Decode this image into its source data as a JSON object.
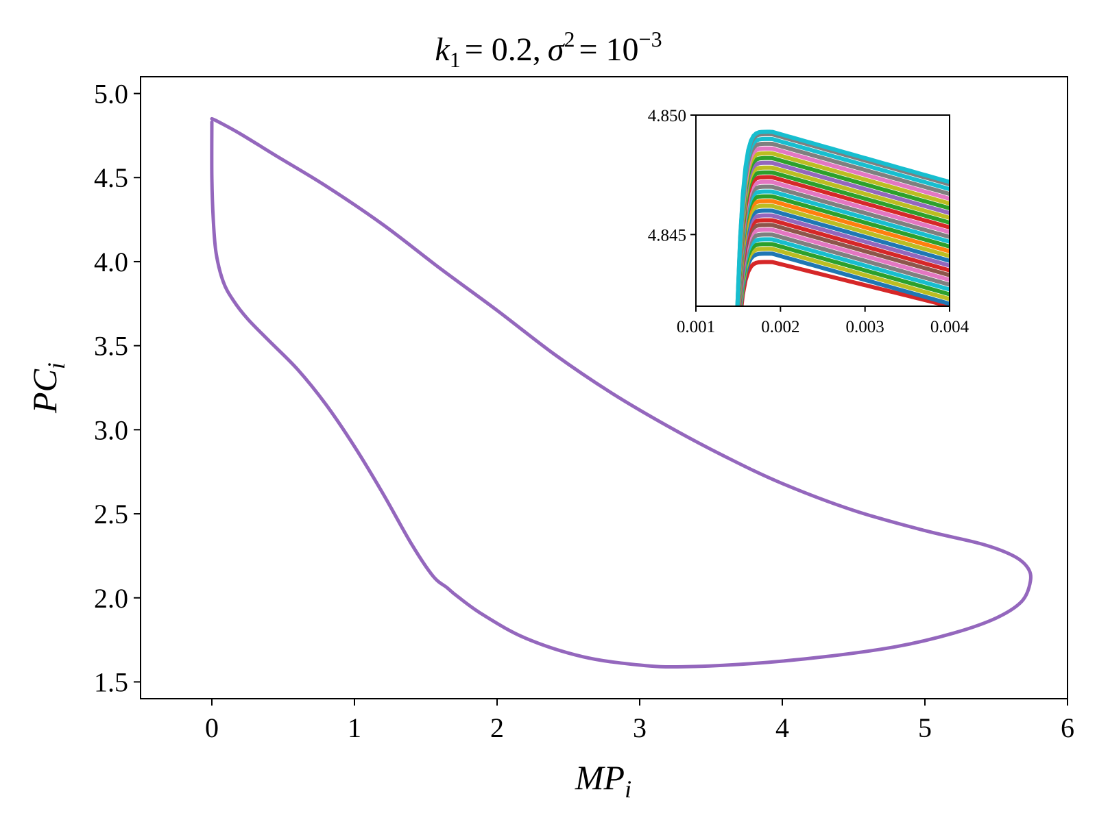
{
  "chart_data": [
    {
      "type": "line",
      "role": "main",
      "title": {
        "k_symbol": "k",
        "k_sub": "1",
        "k_value": "= 0.2,",
        "sigma_symbol": "σ",
        "sigma_sup": "2",
        "eq": "= 10",
        "exp": "−3"
      },
      "xlabel": {
        "base": "MP",
        "sub": "i"
      },
      "ylabel": {
        "base": "PC",
        "sub": "i"
      },
      "xlim": [
        -0.5,
        6
      ],
      "ylim": [
        1.4,
        5.1
      ],
      "xticks": [
        0,
        1,
        2,
        3,
        4,
        5,
        6
      ],
      "xtick_labels": [
        "0",
        "1",
        "2",
        "3",
        "4",
        "5",
        "6"
      ],
      "yticks": [
        1.5,
        2.0,
        2.5,
        3.0,
        3.5,
        4.0,
        4.5,
        5.0
      ],
      "ytick_labels": [
        "1.5",
        "2.0",
        "2.5",
        "3.0",
        "3.5",
        "4.0",
        "4.5",
        "5.0"
      ],
      "grid": false,
      "series": [
        {
          "color": "#9467bd",
          "x": [
            0.0,
            0.0,
            0.01,
            0.03,
            0.08,
            0.15,
            0.25,
            0.4,
            0.6,
            0.8,
            1.0,
            1.2,
            1.4,
            1.55,
            1.65,
            1.72,
            1.9,
            2.2,
            2.6,
            3.0,
            3.3,
            3.8,
            4.3,
            4.8,
            5.2,
            5.5,
            5.68,
            5.74,
            5.72,
            5.62,
            5.4,
            5.0,
            4.5,
            4.0,
            3.6,
            3.2,
            2.8,
            2.4,
            2.0,
            1.6,
            1.2,
            0.8,
            0.45,
            0.2,
            0.05,
            0.0
          ],
          "y": [
            4.83,
            4.5,
            4.25,
            4.05,
            3.88,
            3.77,
            3.66,
            3.53,
            3.36,
            3.15,
            2.9,
            2.62,
            2.32,
            2.13,
            2.06,
            2.01,
            1.9,
            1.76,
            1.65,
            1.6,
            1.59,
            1.61,
            1.65,
            1.71,
            1.79,
            1.88,
            1.98,
            2.1,
            2.18,
            2.25,
            2.32,
            2.4,
            2.52,
            2.68,
            2.84,
            3.02,
            3.22,
            3.45,
            3.71,
            3.96,
            4.22,
            4.45,
            4.63,
            4.76,
            4.83,
            4.85
          ]
        }
      ]
    },
    {
      "type": "line",
      "role": "inset",
      "xlim": [
        0.001,
        0.004
      ],
      "ylim": [
        4.842,
        4.85
      ],
      "xticks": [
        0.001,
        0.002,
        0.003,
        0.004
      ],
      "xtick_labels": [
        "0.001",
        "0.002",
        "0.003",
        "0.004"
      ],
      "yticks": [
        4.845,
        4.85
      ],
      "ytick_labels": [
        "4.845",
        "4.850"
      ],
      "grid": false,
      "curve_shape": {
        "x_rise": 0.00146,
        "x_peak": 0.0019
      },
      "series": [
        {
          "color": "#d62728",
          "peak": 4.84385,
          "end": 4.842
        },
        {
          "color": "#1f77b4",
          "peak": 4.8442,
          "end": 4.8421
        },
        {
          "color": "#bcbd22",
          "peak": 4.8444,
          "end": 4.8423
        },
        {
          "color": "#2ca02c",
          "peak": 4.8446,
          "end": 4.8425
        },
        {
          "color": "#17becf",
          "peak": 4.8448,
          "end": 4.8427
        },
        {
          "color": "#7f7f7f",
          "peak": 4.845,
          "end": 4.8429
        },
        {
          "color": "#e377c2",
          "peak": 4.8452,
          "end": 4.8431
        },
        {
          "color": "#8c564b",
          "peak": 4.8454,
          "end": 4.8433
        },
        {
          "color": "#d62728",
          "peak": 4.8456,
          "end": 4.8435
        },
        {
          "color": "#9467bd",
          "peak": 4.8458,
          "end": 4.8437
        },
        {
          "color": "#1f77b4",
          "peak": 4.846,
          "end": 4.8439
        },
        {
          "color": "#bcbd22",
          "peak": 4.8462,
          "end": 4.8441
        },
        {
          "color": "#ff7f0e",
          "peak": 4.8464,
          "end": 4.8443
        },
        {
          "color": "#2ca02c",
          "peak": 4.8466,
          "end": 4.8445
        },
        {
          "color": "#17becf",
          "peak": 4.8468,
          "end": 4.8447
        },
        {
          "color": "#7f7f7f",
          "peak": 4.847,
          "end": 4.8449
        },
        {
          "color": "#e377c2",
          "peak": 4.8472,
          "end": 4.8451
        },
        {
          "color": "#d62728",
          "peak": 4.8474,
          "end": 4.8453
        },
        {
          "color": "#2ca02c",
          "peak": 4.8476,
          "end": 4.8455
        },
        {
          "color": "#bcbd22",
          "peak": 4.8478,
          "end": 4.8457
        },
        {
          "color": "#9467bd",
          "peak": 4.848,
          "end": 4.8459
        },
        {
          "color": "#2ca02c",
          "peak": 4.8482,
          "end": 4.8461
        },
        {
          "color": "#bcbd22",
          "peak": 4.8484,
          "end": 4.8463
        },
        {
          "color": "#e377c2",
          "peak": 4.8486,
          "end": 4.8465
        },
        {
          "color": "#7f7f7f",
          "peak": 4.8488,
          "end": 4.8467
        },
        {
          "color": "#17becf",
          "peak": 4.849,
          "end": 4.8469
        },
        {
          "color": "#7f7f7f",
          "peak": 4.8492,
          "end": 4.8471
        },
        {
          "color": "#17becf",
          "peak": 4.8493,
          "end": 4.8472
        }
      ]
    }
  ]
}
